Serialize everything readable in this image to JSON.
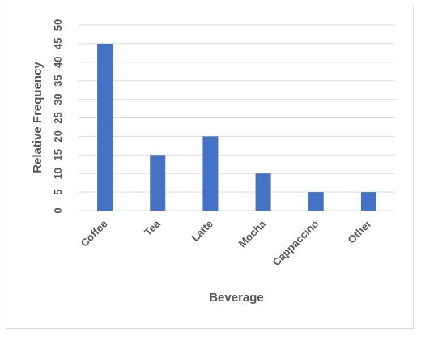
{
  "chart_data": {
    "type": "bar",
    "title": "",
    "xlabel": "Beverage",
    "ylabel": "Relative Frequency",
    "categories": [
      "Coffee",
      "Tea",
      "Latte",
      "Mocha",
      "Cappaccino",
      "Other"
    ],
    "values": [
      45,
      15,
      20,
      10,
      5,
      5
    ],
    "ylim": [
      0,
      50
    ],
    "ytick_step": 5,
    "grid": true,
    "legend": "none",
    "bar_color": "#4472c4",
    "grid_color": "#d9d9d9",
    "text_color": "#595959"
  }
}
